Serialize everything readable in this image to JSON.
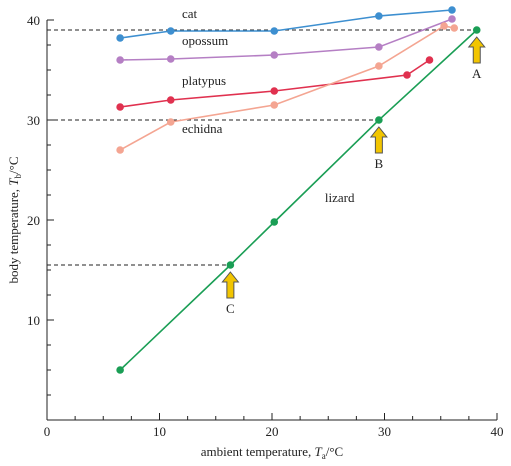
{
  "chart_data": {
    "type": "line",
    "title": "",
    "xlabel": {
      "prefix": "ambient temperature, ",
      "var": "T",
      "sub": "a",
      "suffix": "/°C"
    },
    "ylabel": {
      "prefix": "body temperature, ",
      "var": "T",
      "sub": "b",
      "suffix": "/°C"
    },
    "xlim": [
      0,
      40
    ],
    "ylim": [
      0,
      40
    ],
    "xticks": [
      0,
      10,
      20,
      30,
      40
    ],
    "yticks": [
      10,
      20,
      30,
      40
    ],
    "x_minor_step": 2.5,
    "y_minor_step": 2.5,
    "grid": false,
    "series": [
      {
        "name": "cat",
        "color": "#3d8fd0",
        "x": [
          6.5,
          11,
          20.2,
          29.5,
          36
        ],
        "y": [
          38.2,
          38.9,
          38.9,
          40.4,
          41
        ]
      },
      {
        "name": "opossum",
        "color": "#b57fc4",
        "x": [
          6.5,
          11,
          20.2,
          29.5,
          36
        ],
        "y": [
          36,
          36.1,
          36.5,
          37.3,
          40.1
        ]
      },
      {
        "name": "platypus",
        "color": "#e0314f",
        "x": [
          6.5,
          11,
          20.2,
          32,
          34
        ],
        "y": [
          31.3,
          32,
          32.9,
          34.5,
          36
        ]
      },
      {
        "name": "echidna",
        "color": "#f4a592",
        "x": [
          6.5,
          11,
          20.2,
          29.5,
          35.3,
          36.2
        ],
        "y": [
          27,
          29.8,
          31.5,
          35.4,
          39.4,
          39.2
        ]
      },
      {
        "name": "lizard",
        "color": "#1a9e55",
        "x": [
          6.5,
          16.3,
          20.2,
          29.5,
          38.2
        ],
        "y": [
          5,
          15.5,
          19.8,
          30,
          39
        ]
      }
    ],
    "series_label_positions": {
      "cat": [
        12,
        40.2
      ],
      "opossum": [
        12,
        37.5
      ],
      "platypus": [
        12,
        33.5
      ],
      "echidna": [
        12,
        28.7
      ],
      "lizard": [
        24.7,
        21.8
      ]
    },
    "reference_lines": [
      {
        "y": 39,
        "x_end": 38.2
      },
      {
        "y": 30,
        "x_end": 29.5
      },
      {
        "y": 15.5,
        "x_end": 16.3
      }
    ],
    "annotations": [
      {
        "label": "A",
        "x": 38.2,
        "y": 39
      },
      {
        "label": "B",
        "x": 29.5,
        "y": 30
      },
      {
        "label": "C",
        "x": 16.3,
        "y": 15.5
      }
    ],
    "annotation_color": "#f2c500"
  }
}
